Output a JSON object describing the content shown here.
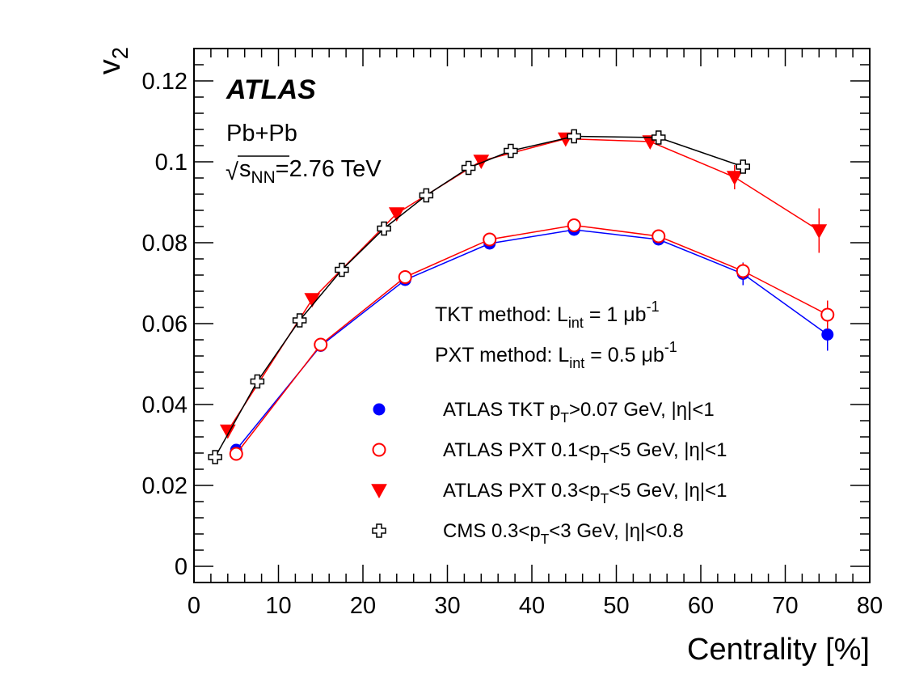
{
  "chart_data": {
    "type": "line",
    "title": "",
    "xlabel": "Centrality [%]",
    "ylabel": "v",
    "ylabel_sub": "2",
    "xlim": [
      0,
      80
    ],
    "ylim": [
      -0.004,
      0.128
    ],
    "grid": false,
    "x_ticks": [
      0,
      10,
      20,
      30,
      40,
      50,
      60,
      70,
      80
    ],
    "x_tick_labels": [
      "0",
      "10",
      "20",
      "30",
      "40",
      "50",
      "60",
      "70",
      "80"
    ],
    "y_ticks": [
      0,
      0.02,
      0.04,
      0.06,
      0.08,
      0.1,
      0.12
    ],
    "y_tick_labels": [
      "0",
      "0.02",
      "0.04",
      "0.06",
      "0.08",
      "0.1",
      "0.12"
    ],
    "annotations": {
      "experiment": "ATLAS",
      "system": "Pb+Pb",
      "energy_sqrt": "√",
      "energy_s": "s",
      "energy_sub": "NN",
      "energy_value": "=2.76 TeV",
      "tkt_main": "TKT method: L",
      "tkt_sub": "int",
      "tkt_eq": " = 1 μb",
      "tkt_sup": "-1",
      "pxt_main": "PXT method: L",
      "pxt_sub": "int",
      "pxt_eq": " = 0.5 μb",
      "pxt_sup": "-1"
    },
    "legend_placement": "bottom-right",
    "series": [
      {
        "name": "ATLAS TKT p_T>0.07 GeV, |η|<1",
        "legend_parts": [
          "ATLAS TKT p",
          "T",
          ">0.07 GeV, |η|<1"
        ],
        "marker": "filled-circle",
        "color": "#0000ff",
        "x": [
          5,
          15,
          25,
          35,
          45,
          55,
          65,
          75
        ],
        "y": [
          0.0288,
          0.0545,
          0.0708,
          0.0798,
          0.0832,
          0.0808,
          0.0723,
          0.0573
        ],
        "yerr": [
          0.0006,
          0.0006,
          0.0006,
          0.0006,
          0.0008,
          0.001,
          0.0028,
          0.004
        ]
      },
      {
        "name": "ATLAS PXT 0.1<p_T<5 GeV, |η|<1",
        "legend_parts": [
          "ATLAS PXT 0.1<p",
          "T",
          "<5 GeV, |η|<1"
        ],
        "marker": "open-circle",
        "color": "#ff0000",
        "x": [
          5,
          15,
          25,
          35,
          45,
          55,
          65,
          75
        ],
        "y": [
          0.0278,
          0.0548,
          0.0715,
          0.0808,
          0.0843,
          0.0816,
          0.073,
          0.0622
        ],
        "yerr": [
          0.0006,
          0.0006,
          0.0006,
          0.0006,
          0.0006,
          0.0008,
          0.002,
          0.0035
        ]
      },
      {
        "name": "ATLAS PXT 0.3<p_T<5 GeV, |η|<1",
        "legend_parts": [
          "ATLAS PXT 0.3<p",
          "T",
          "<5 GeV, |η|<1"
        ],
        "marker": "filled-triangle-down",
        "color": "#ff0000",
        "x": [
          4,
          14,
          24,
          34,
          44,
          54,
          64,
          74
        ],
        "y": [
          0.0335,
          0.066,
          0.0872,
          0.1002,
          0.1057,
          0.105,
          0.0962,
          0.083
        ],
        "yerr": [
          0.0007,
          0.0007,
          0.0007,
          0.0007,
          0.0008,
          0.0012,
          0.003,
          0.0055
        ]
      },
      {
        "name": "CMS 0.3<p_T<3 GeV, |η|<0.8",
        "legend_parts": [
          "CMS 0.3<p",
          "T",
          "<3 GeV, |η|<0.8"
        ],
        "marker": "open-cross",
        "color": "#000000",
        "x": [
          2.5,
          7.5,
          12.5,
          17.5,
          22.5,
          27.5,
          32.5,
          37.5,
          45,
          55,
          65
        ],
        "y": [
          0.027,
          0.0457,
          0.0608,
          0.0733,
          0.0835,
          0.0917,
          0.0985,
          0.1027,
          0.1063,
          0.106,
          0.0988
        ],
        "yerr": [
          0.0004,
          0.0004,
          0.0004,
          0.0004,
          0.0004,
          0.0004,
          0.0004,
          0.0004,
          0.0005,
          0.0005,
          0.0006
        ]
      }
    ]
  }
}
